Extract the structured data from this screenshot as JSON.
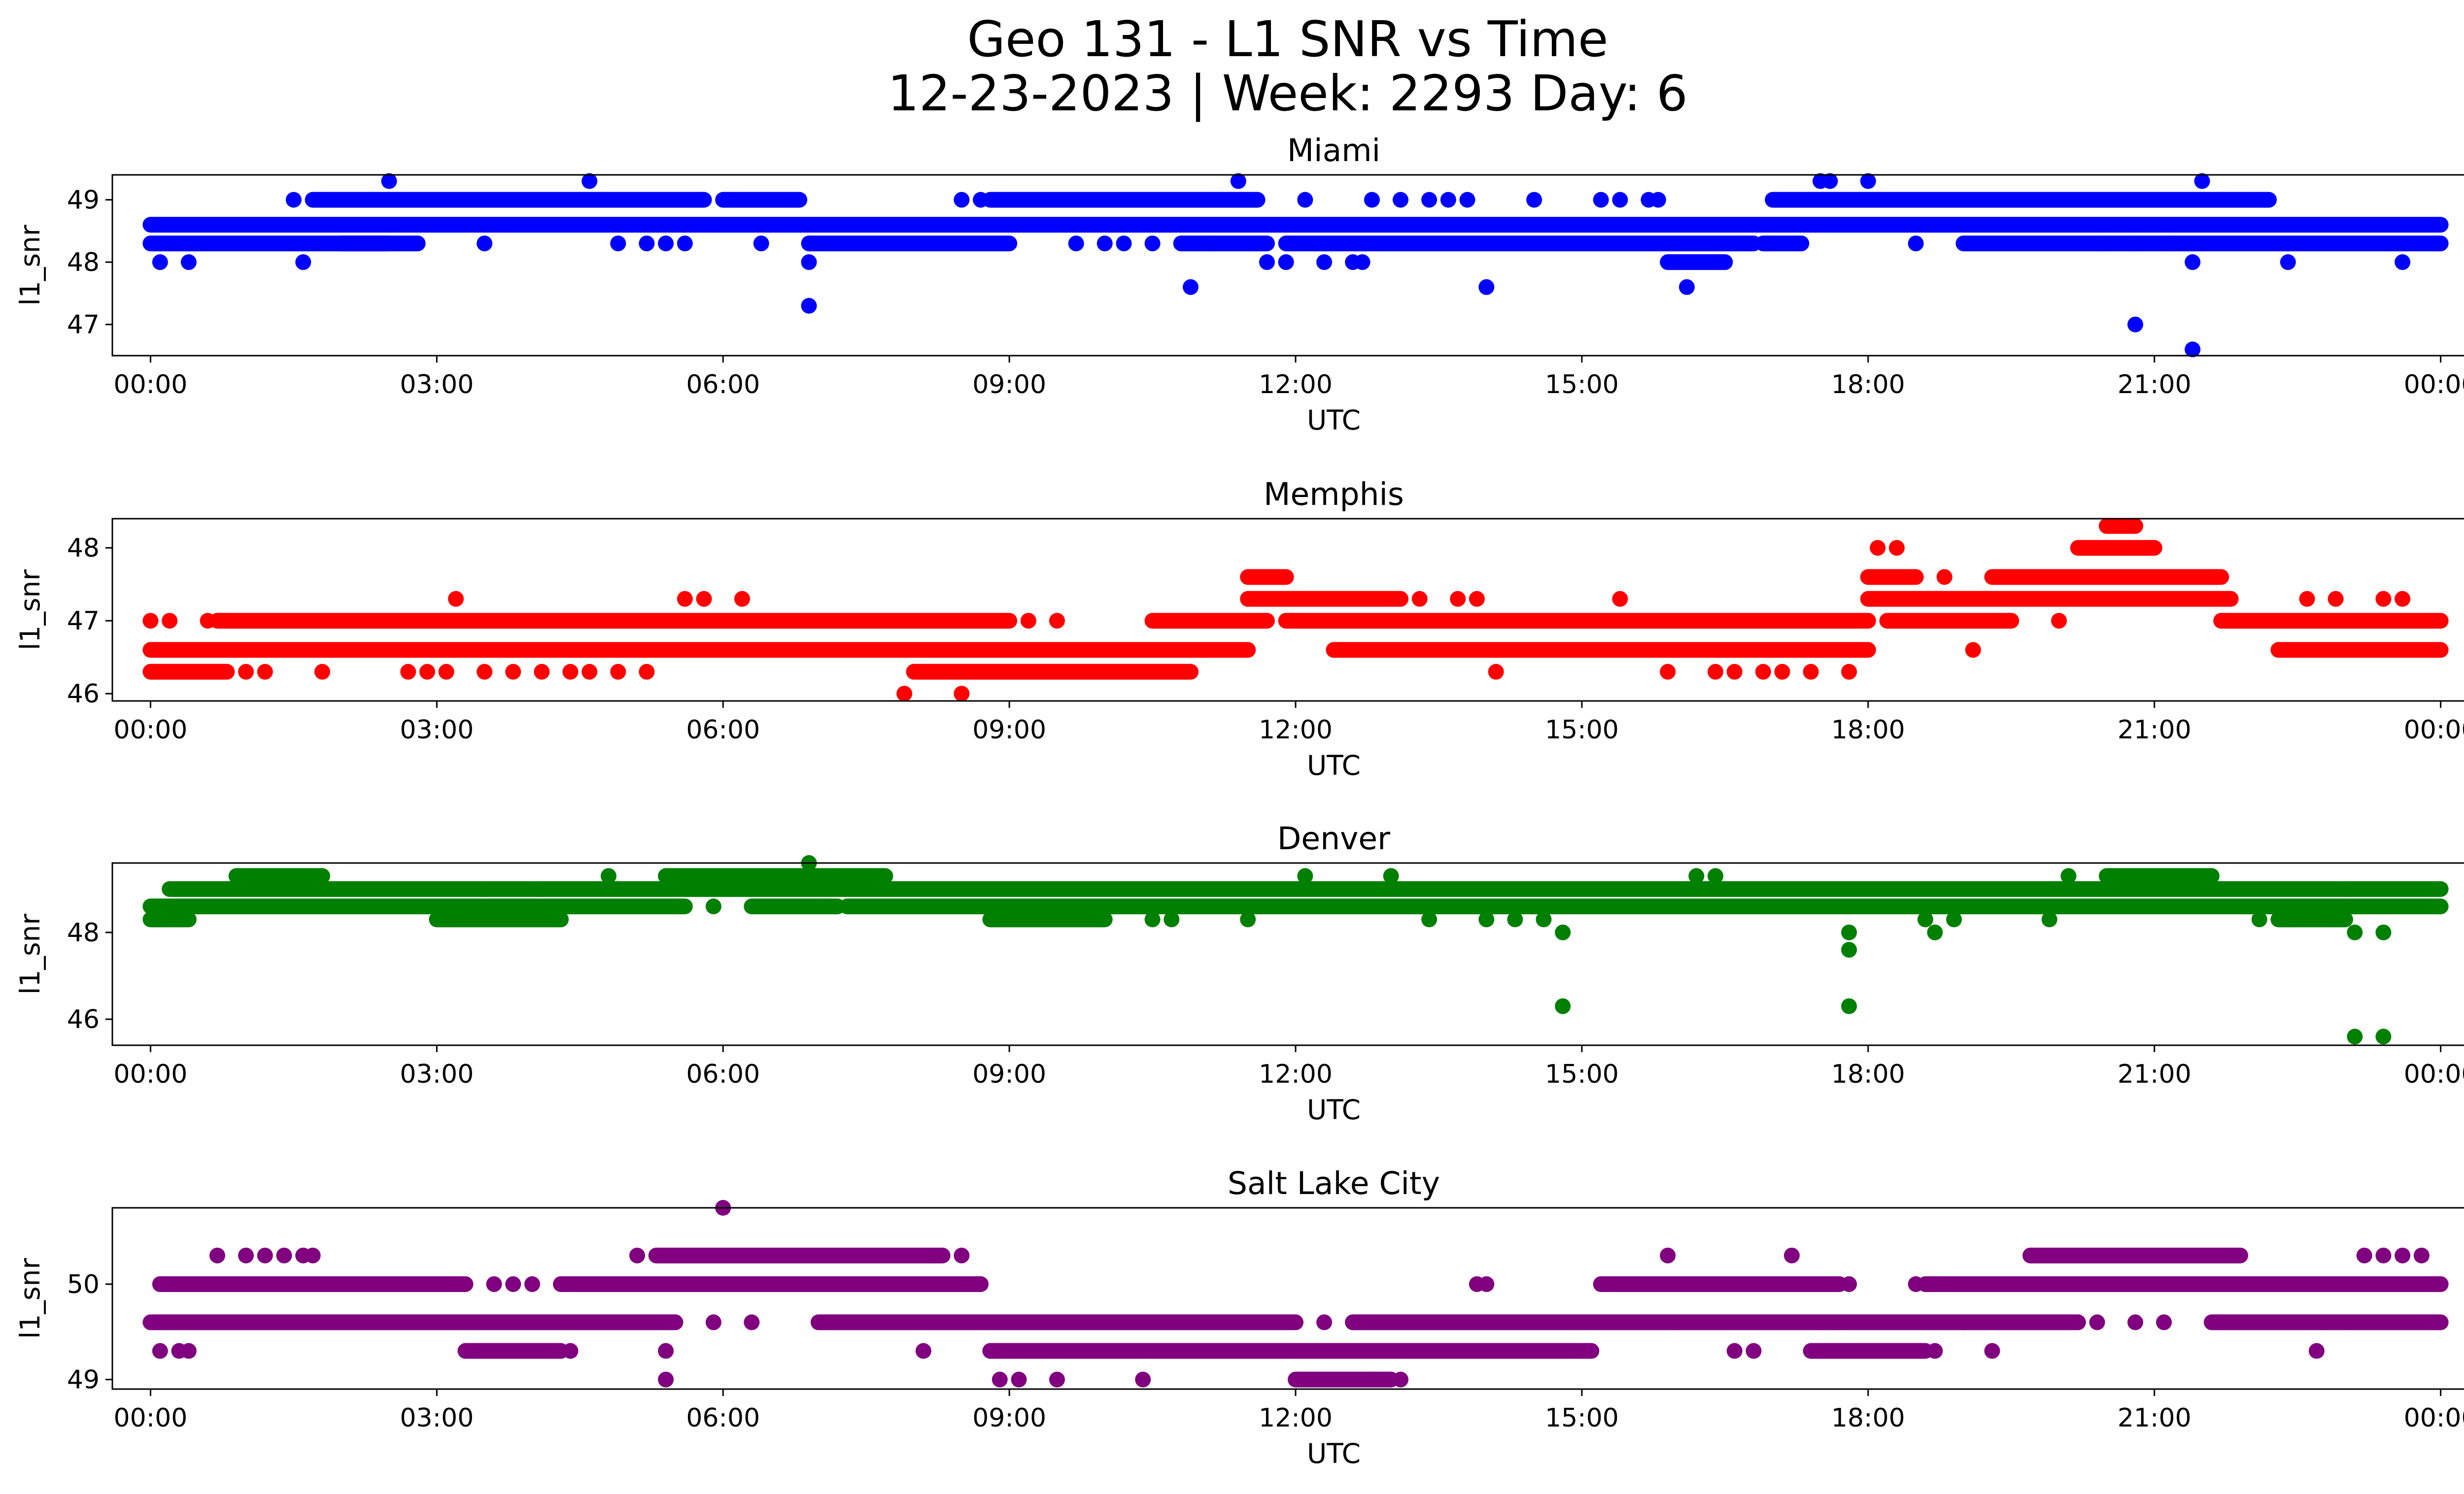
{
  "suptitle": {
    "line1": "Geo 131 - L1 SNR vs Time",
    "line2": "12-23-2023 | Week: 2293 Day: 6"
  },
  "chart_data": [
    {
      "type": "scatter",
      "title": "Miami",
      "xlabel": "UTC",
      "ylabel": "l1_snr",
      "color": "#0000ff",
      "xlim": [
        -0.4,
        25.2
      ],
      "ylim": [
        46.5,
        49.4
      ],
      "xticks": [
        "00:00",
        "03:00",
        "06:00",
        "09:00",
        "12:00",
        "15:00",
        "18:00",
        "21:00",
        "00:00"
      ],
      "yticks": [
        47,
        48,
        49
      ],
      "bands": [
        {
          "y": 48.6,
          "segments": [
            [
              0,
              24
            ]
          ]
        },
        {
          "y": 48.3,
          "segments": [
            [
              0,
              2.5
            ],
            [
              2.0,
              2.8
            ],
            [
              6.9,
              9.0
            ],
            [
              10.8,
              11.7
            ],
            [
              11.9,
              16.8
            ],
            [
              16.9,
              17.3
            ],
            [
              19.0,
              24
            ]
          ]
        },
        {
          "y": 49.0,
          "segments": [
            [
              1.7,
              5.8
            ],
            [
              6.0,
              6.8
            ],
            [
              8.8,
              11.6
            ],
            [
              17.0,
              22.2
            ]
          ]
        },
        {
          "y": 48.0,
          "segments": [
            [
              15.9,
              16.5
            ]
          ]
        }
      ],
      "points": [
        {
          "x": 0.1,
          "y": 48.0
        },
        {
          "x": 0.4,
          "y": 48.0
        },
        {
          "x": 1.5,
          "y": 49.0
        },
        {
          "x": 1.6,
          "y": 48.0
        },
        {
          "x": 2.5,
          "y": 49.3
        },
        {
          "x": 3.5,
          "y": 48.3
        },
        {
          "x": 4.6,
          "y": 49.3
        },
        {
          "x": 4.9,
          "y": 48.3
        },
        {
          "x": 5.2,
          "y": 48.3
        },
        {
          "x": 5.4,
          "y": 48.3
        },
        {
          "x": 5.6,
          "y": 48.3
        },
        {
          "x": 6.4,
          "y": 48.3
        },
        {
          "x": 6.9,
          "y": 48.0
        },
        {
          "x": 6.9,
          "y": 47.3
        },
        {
          "x": 8.5,
          "y": 49.0
        },
        {
          "x": 8.7,
          "y": 49.0
        },
        {
          "x": 9.7,
          "y": 48.3
        },
        {
          "x": 10.0,
          "y": 48.3
        },
        {
          "x": 10.2,
          "y": 48.3
        },
        {
          "x": 10.5,
          "y": 48.3
        },
        {
          "x": 10.9,
          "y": 47.6
        },
        {
          "x": 11.1,
          "y": 48.3
        },
        {
          "x": 11.4,
          "y": 49.3
        },
        {
          "x": 11.7,
          "y": 48.0
        },
        {
          "x": 11.9,
          "y": 48.0
        },
        {
          "x": 12.1,
          "y": 49.0
        },
        {
          "x": 12.3,
          "y": 48.0
        },
        {
          "x": 12.6,
          "y": 48.0
        },
        {
          "x": 12.7,
          "y": 48.0
        },
        {
          "x": 12.8,
          "y": 49.0
        },
        {
          "x": 13.1,
          "y": 49.0
        },
        {
          "x": 13.4,
          "y": 49.0
        },
        {
          "x": 13.6,
          "y": 49.0
        },
        {
          "x": 13.8,
          "y": 49.0
        },
        {
          "x": 14.0,
          "y": 47.6
        },
        {
          "x": 14.5,
          "y": 49.0
        },
        {
          "x": 15.2,
          "y": 49.0
        },
        {
          "x": 15.4,
          "y": 49.0
        },
        {
          "x": 15.7,
          "y": 49.0
        },
        {
          "x": 15.8,
          "y": 49.0
        },
        {
          "x": 16.1,
          "y": 47.6
        },
        {
          "x": 17.5,
          "y": 49.3
        },
        {
          "x": 17.6,
          "y": 49.3
        },
        {
          "x": 18.0,
          "y": 49.3
        },
        {
          "x": 18.5,
          "y": 48.3
        },
        {
          "x": 20.4,
          "y": 48.3
        },
        {
          "x": 20.8,
          "y": 47.0
        },
        {
          "x": 20.8,
          "y": 48.3
        },
        {
          "x": 21.2,
          "y": 48.3
        },
        {
          "x": 21.4,
          "y": 48.0
        },
        {
          "x": 21.4,
          "y": 46.6
        },
        {
          "x": 21.5,
          "y": 49.3
        },
        {
          "x": 22.4,
          "y": 48.0
        },
        {
          "x": 23.6,
          "y": 48.0
        }
      ]
    },
    {
      "type": "scatter",
      "title": "Memphis",
      "xlabel": "UTC",
      "ylabel": "l1_snr",
      "color": "#ff0000",
      "xlim": [
        -0.4,
        25.2
      ],
      "ylim": [
        45.9,
        48.4
      ],
      "xticks": [
        "00:00",
        "03:00",
        "06:00",
        "09:00",
        "12:00",
        "15:00",
        "18:00",
        "21:00",
        "00:00"
      ],
      "yticks": [
        46,
        47,
        48
      ],
      "bands": [
        {
          "y": 46.6,
          "segments": [
            [
              0,
              11.5
            ],
            [
              12.4,
              18.0
            ],
            [
              22.3,
              24
            ]
          ]
        },
        {
          "y": 47.0,
          "segments": [
            [
              0.7,
              9.0
            ],
            [
              10.5,
              11.7
            ],
            [
              11.9,
              18.0
            ],
            [
              18.2,
              19.5
            ],
            [
              21.7,
              24
            ]
          ]
        },
        {
          "y": 46.3,
          "segments": [
            [
              0,
              0.8
            ],
            [
              8.0,
              10.9
            ]
          ]
        },
        {
          "y": 47.3,
          "segments": [
            [
              11.5,
              13.1
            ],
            [
              18.0,
              21.8
            ]
          ]
        },
        {
          "y": 47.6,
          "segments": [
            [
              11.5,
              11.9
            ],
            [
              18.0,
              18.5
            ],
            [
              19.3,
              21.7
            ]
          ]
        },
        {
          "y": 48.0,
          "segments": [
            [
              20.2,
              21.0
            ]
          ]
        },
        {
          "y": 48.3,
          "segments": [
            [
              20.5,
              20.8
            ]
          ]
        }
      ],
      "points": [
        {
          "x": 0.0,
          "y": 47.0
        },
        {
          "x": 0.2,
          "y": 47.0
        },
        {
          "x": 0.6,
          "y": 47.0
        },
        {
          "x": 1.0,
          "y": 46.3
        },
        {
          "x": 1.2,
          "y": 46.3
        },
        {
          "x": 1.8,
          "y": 46.3
        },
        {
          "x": 2.7,
          "y": 46.3
        },
        {
          "x": 2.9,
          "y": 46.3
        },
        {
          "x": 3.1,
          "y": 46.3
        },
        {
          "x": 3.2,
          "y": 47.3
        },
        {
          "x": 3.5,
          "y": 46.3
        },
        {
          "x": 3.8,
          "y": 46.3
        },
        {
          "x": 4.1,
          "y": 46.3
        },
        {
          "x": 4.4,
          "y": 46.3
        },
        {
          "x": 4.6,
          "y": 46.3
        },
        {
          "x": 4.9,
          "y": 46.3
        },
        {
          "x": 5.2,
          "y": 46.3
        },
        {
          "x": 5.6,
          "y": 47.3
        },
        {
          "x": 5.8,
          "y": 47.3
        },
        {
          "x": 6.2,
          "y": 47.3
        },
        {
          "x": 7.9,
          "y": 46.0
        },
        {
          "x": 8.5,
          "y": 46.0
        },
        {
          "x": 9.2,
          "y": 47.0
        },
        {
          "x": 9.5,
          "y": 47.0
        },
        {
          "x": 13.3,
          "y": 47.3
        },
        {
          "x": 13.7,
          "y": 47.3
        },
        {
          "x": 13.9,
          "y": 47.3
        },
        {
          "x": 14.1,
          "y": 46.3
        },
        {
          "x": 15.4,
          "y": 47.3
        },
        {
          "x": 15.9,
          "y": 46.3
        },
        {
          "x": 16.4,
          "y": 46.3
        },
        {
          "x": 16.6,
          "y": 46.3
        },
        {
          "x": 16.9,
          "y": 46.3
        },
        {
          "x": 17.1,
          "y": 46.3
        },
        {
          "x": 17.4,
          "y": 46.3
        },
        {
          "x": 17.8,
          "y": 46.3
        },
        {
          "x": 18.1,
          "y": 48.0
        },
        {
          "x": 18.3,
          "y": 48.0
        },
        {
          "x": 18.8,
          "y": 47.6
        },
        {
          "x": 19.1,
          "y": 46.6
        },
        {
          "x": 20.0,
          "y": 47.0
        },
        {
          "x": 22.6,
          "y": 47.3
        },
        {
          "x": 22.9,
          "y": 47.3
        },
        {
          "x": 23.4,
          "y": 47.3
        },
        {
          "x": 23.6,
          "y": 47.3
        }
      ]
    },
    {
      "type": "scatter",
      "title": "Denver",
      "xlabel": "UTC",
      "ylabel": "l1_snr",
      "color": "#008000",
      "xlim": [
        -0.4,
        25.2
      ],
      "ylim": [
        45.4,
        49.6
      ],
      "xticks": [
        "00:00",
        "03:00",
        "06:00",
        "09:00",
        "12:00",
        "15:00",
        "18:00",
        "21:00",
        "00:00"
      ],
      "yticks": [
        46,
        48
      ],
      "bands": [
        {
          "y": 49.0,
          "segments": [
            [
              0.2,
              24
            ]
          ]
        },
        {
          "y": 48.6,
          "segments": [
            [
              0,
              5.6
            ],
            [
              6.3,
              7.2
            ],
            [
              7.3,
              24
            ]
          ]
        },
        {
          "y": 48.3,
          "segments": [
            [
              0,
              0.4
            ],
            [
              3.0,
              4.3
            ],
            [
              8.8,
              10.0
            ],
            [
              22.3,
              23.0
            ]
          ]
        },
        {
          "y": 49.3,
          "segments": [
            [
              0.9,
              1.8
            ],
            [
              5.4,
              7.7
            ],
            [
              20.5,
              21.6
            ]
          ]
        }
      ],
      "points": [
        {
          "x": 3.5,
          "y": 49.0
        },
        {
          "x": 4.1,
          "y": 49.0
        },
        {
          "x": 4.8,
          "y": 49.3
        },
        {
          "x": 5.9,
          "y": 48.6
        },
        {
          "x": 6.9,
          "y": 49.6
        },
        {
          "x": 7.0,
          "y": 48.6
        },
        {
          "x": 7.4,
          "y": 48.6
        },
        {
          "x": 9.8,
          "y": 48.3
        },
        {
          "x": 10.5,
          "y": 48.3
        },
        {
          "x": 10.7,
          "y": 48.3
        },
        {
          "x": 11.5,
          "y": 48.3
        },
        {
          "x": 12.1,
          "y": 49.3
        },
        {
          "x": 13.0,
          "y": 49.3
        },
        {
          "x": 13.4,
          "y": 48.3
        },
        {
          "x": 14.0,
          "y": 48.3
        },
        {
          "x": 14.3,
          "y": 48.3
        },
        {
          "x": 14.6,
          "y": 48.3
        },
        {
          "x": 14.8,
          "y": 48.0
        },
        {
          "x": 14.8,
          "y": 46.3
        },
        {
          "x": 16.2,
          "y": 49.3
        },
        {
          "x": 16.4,
          "y": 49.3
        },
        {
          "x": 17.8,
          "y": 47.6
        },
        {
          "x": 17.8,
          "y": 46.3
        },
        {
          "x": 17.8,
          "y": 48.0
        },
        {
          "x": 18.6,
          "y": 48.3
        },
        {
          "x": 18.7,
          "y": 48.0
        },
        {
          "x": 18.9,
          "y": 48.3
        },
        {
          "x": 19.9,
          "y": 48.3
        },
        {
          "x": 20.1,
          "y": 49.3
        },
        {
          "x": 22.1,
          "y": 48.3
        },
        {
          "x": 23.1,
          "y": 48.0
        },
        {
          "x": 23.4,
          "y": 48.0
        },
        {
          "x": 23.1,
          "y": 45.6
        },
        {
          "x": 23.4,
          "y": 45.6
        },
        {
          "x": 23.0,
          "y": 49.0
        }
      ]
    },
    {
      "type": "scatter",
      "title": "Salt Lake City",
      "xlabel": "UTC",
      "ylabel": "l1_snr",
      "color": "#800080",
      "xlim": [
        -0.4,
        25.2
      ],
      "ylim": [
        48.9,
        50.8
      ],
      "xticks": [
        "00:00",
        "03:00",
        "06:00",
        "09:00",
        "12:00",
        "15:00",
        "18:00",
        "21:00",
        "00:00"
      ],
      "yticks": [
        49,
        50
      ],
      "bands": [
        {
          "y": 50.0,
          "segments": [
            [
              0.1,
              3.3
            ],
            [
              4.3,
              8.7
            ],
            [
              15.2,
              17.7
            ],
            [
              18.6,
              24
            ]
          ]
        },
        {
          "y": 49.6,
          "segments": [
            [
              0,
              5.5
            ],
            [
              7.0,
              12.0
            ],
            [
              12.6,
              20.2
            ],
            [
              21.6,
              24
            ]
          ]
        },
        {
          "y": 49.3,
          "segments": [
            [
              3.3,
              4.3
            ],
            [
              8.8,
              15.1
            ],
            [
              17.4,
              18.6
            ]
          ]
        },
        {
          "y": 50.3,
          "segments": [
            [
              5.3,
              8.3
            ],
            [
              19.7,
              21.9
            ]
          ]
        },
        {
          "y": 49.0,
          "segments": [
            [
              12.0,
              13.0
            ]
          ]
        }
      ],
      "points": [
        {
          "x": 0.1,
          "y": 49.3
        },
        {
          "x": 0.3,
          "y": 49.3
        },
        {
          "x": 0.4,
          "y": 49.3
        },
        {
          "x": 0.7,
          "y": 50.3
        },
        {
          "x": 1.0,
          "y": 50.3
        },
        {
          "x": 1.2,
          "y": 50.3
        },
        {
          "x": 1.4,
          "y": 50.3
        },
        {
          "x": 1.6,
          "y": 50.3
        },
        {
          "x": 1.7,
          "y": 50.3
        },
        {
          "x": 3.6,
          "y": 50.0
        },
        {
          "x": 3.8,
          "y": 50.0
        },
        {
          "x": 4.0,
          "y": 50.0
        },
        {
          "x": 4.4,
          "y": 49.3
        },
        {
          "x": 5.1,
          "y": 50.3
        },
        {
          "x": 5.4,
          "y": 49.3
        },
        {
          "x": 5.4,
          "y": 49.0
        },
        {
          "x": 5.9,
          "y": 49.6
        },
        {
          "x": 6.0,
          "y": 50.8
        },
        {
          "x": 6.3,
          "y": 49.6
        },
        {
          "x": 8.1,
          "y": 49.3
        },
        {
          "x": 8.5,
          "y": 50.3
        },
        {
          "x": 8.9,
          "y": 49.0
        },
        {
          "x": 9.1,
          "y": 49.0
        },
        {
          "x": 9.5,
          "y": 49.0
        },
        {
          "x": 10.4,
          "y": 49.0
        },
        {
          "x": 12.3,
          "y": 49.6
        },
        {
          "x": 12.6,
          "y": 49.6
        },
        {
          "x": 12.8,
          "y": 49.0
        },
        {
          "x": 13.1,
          "y": 49.0
        },
        {
          "x": 13.9,
          "y": 50.0
        },
        {
          "x": 14.0,
          "y": 50.0
        },
        {
          "x": 15.9,
          "y": 50.3
        },
        {
          "x": 16.0,
          "y": 49.6
        },
        {
          "x": 16.6,
          "y": 49.3
        },
        {
          "x": 16.8,
          "y": 49.3
        },
        {
          "x": 17.2,
          "y": 50.3
        },
        {
          "x": 17.5,
          "y": 49.6
        },
        {
          "x": 17.7,
          "y": 49.6
        },
        {
          "x": 17.8,
          "y": 50.0
        },
        {
          "x": 18.5,
          "y": 50.0
        },
        {
          "x": 18.7,
          "y": 49.3
        },
        {
          "x": 19.0,
          "y": 49.6
        },
        {
          "x": 19.3,
          "y": 49.3
        },
        {
          "x": 20.4,
          "y": 49.6
        },
        {
          "x": 20.8,
          "y": 49.6
        },
        {
          "x": 21.1,
          "y": 49.6
        },
        {
          "x": 22.7,
          "y": 49.3
        },
        {
          "x": 22.8,
          "y": 49.6
        },
        {
          "x": 23.0,
          "y": 49.6
        },
        {
          "x": 23.2,
          "y": 50.3
        },
        {
          "x": 23.4,
          "y": 50.3
        },
        {
          "x": 23.6,
          "y": 50.3
        },
        {
          "x": 23.8,
          "y": 50.3
        }
      ]
    }
  ]
}
